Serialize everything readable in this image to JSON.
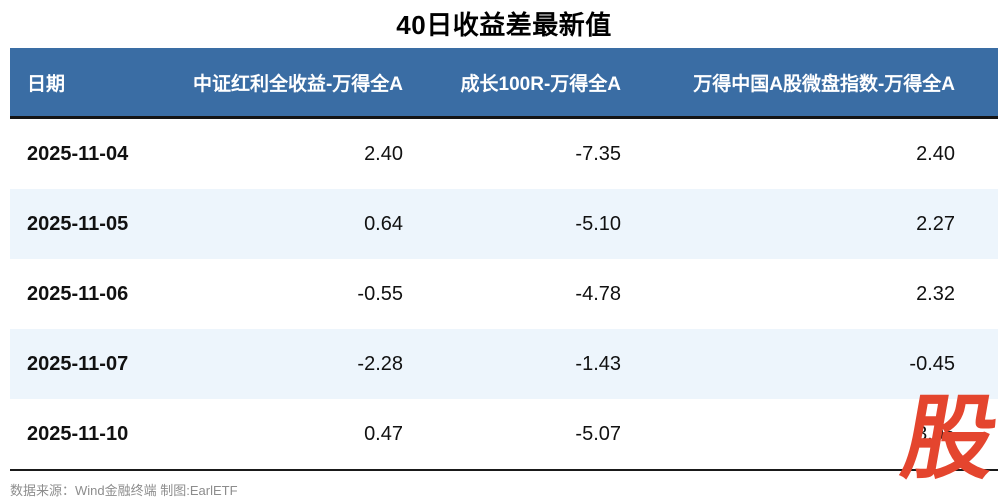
{
  "title": "40日收益差最新值",
  "table": {
    "columns": [
      "日期",
      "中证红利全收益-万得全A",
      "成长100R-万得全A",
      "万得中国A股微盘指数-万得全A"
    ],
    "rows": [
      {
        "date": "2025-11-04",
        "values": [
          "2.40",
          "-7.35",
          "2.40"
        ]
      },
      {
        "date": "2025-11-05",
        "values": [
          "0.64",
          "-5.10",
          "2.27"
        ]
      },
      {
        "date": "2025-11-06",
        "values": [
          "-0.55",
          "-4.78",
          "2.32"
        ]
      },
      {
        "date": "2025-11-07",
        "values": [
          "-2.28",
          "-1.43",
          "-0.45"
        ]
      },
      {
        "date": "2025-11-10",
        "values": [
          "0.47",
          "-5.07",
          "3.05"
        ]
      }
    ]
  },
  "footer": {
    "source_note": "数据来源：Wind金融终端 制图:EarlETF"
  },
  "watermark": {
    "text": "股",
    "color": "#E4452E"
  },
  "colors": {
    "header_bg": "#3A6DA4",
    "header_text": "#FFFFFF",
    "alt_row_bg": "#EDF5FC",
    "rule": "#1a1a1a"
  },
  "chart_data": {
    "type": "table",
    "title": "40日收益差最新值",
    "columns": [
      "日期",
      "中证红利全收益-万得全A",
      "成长100R-万得全A",
      "万得中国A股微盘指数-万得全A"
    ],
    "rows": [
      [
        "2025-11-04",
        2.4,
        -7.35,
        2.4
      ],
      [
        "2025-11-05",
        0.64,
        -5.1,
        2.27
      ],
      [
        "2025-11-06",
        -0.55,
        -4.78,
        2.32
      ],
      [
        "2025-11-07",
        -2.28,
        -1.43,
        -0.45
      ],
      [
        "2025-11-10",
        0.47,
        -5.07,
        3.05
      ]
    ],
    "notes": "last cell of 2025-11-10 row is partially obscured by red 股 logo watermark"
  }
}
